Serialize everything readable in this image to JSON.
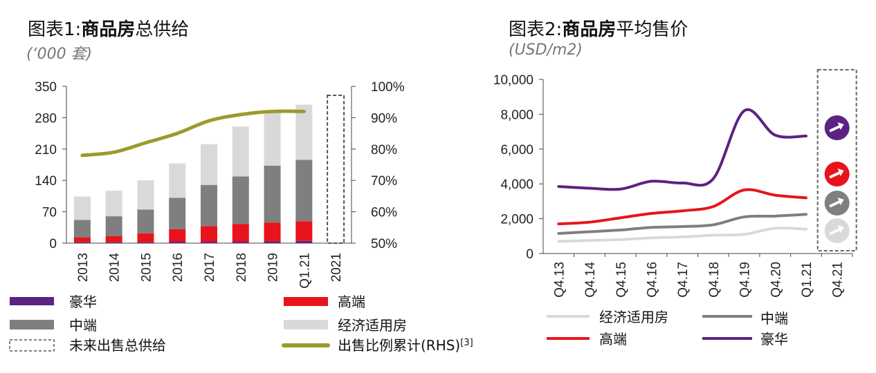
{
  "chart1": {
    "title_prefix": "图表1:",
    "title_bold": "商品房",
    "title_rest": "总供给",
    "unit": "(‘000 套)"
  },
  "chart2": {
    "title_prefix": "图表2:",
    "title_bold": "商品房",
    "title_rest": "平均售价",
    "unit": "(USD/m2)"
  },
  "colors": {
    "luxury": "#5b2281",
    "high": "#e8141b",
    "mid": "#7f7f7f",
    "affordable": "#d9d9d9",
    "ratio": "#9c9a2a"
  },
  "chart_data": [
    {
      "type": "bar",
      "stacked": true,
      "categories": [
        "2013",
        "2014",
        "2015",
        "2016",
        "2017",
        "2018",
        "2019",
        "Q1.21",
        "2021"
      ],
      "ylim": [
        0,
        350
      ],
      "yticks": [
        "0",
        "70",
        "140",
        "210",
        "280",
        "350"
      ],
      "y2lim": [
        50,
        100
      ],
      "y2ticks": [
        "50%",
        "60%",
        "70%",
        "80%",
        "90%",
        "100%"
      ],
      "series": [
        {
          "name": "豪华",
          "values": [
            2,
            2,
            2,
            3,
            3,
            3,
            4,
            5,
            null
          ]
        },
        {
          "name": "高端",
          "values": [
            11,
            14,
            20,
            28,
            35,
            40,
            42,
            44,
            null
          ]
        },
        {
          "name": "中端",
          "values": [
            39,
            44,
            53,
            70,
            92,
            106,
            127,
            137,
            null
          ]
        },
        {
          "name": "经济适用房",
          "values": [
            52,
            57,
            65,
            77,
            91,
            111,
            123,
            123,
            null
          ]
        },
        {
          "name": "出售比例累计(RHS)[3]",
          "axis": "right",
          "values": [
            78,
            79,
            82,
            85,
            89,
            91,
            92,
            92,
            null
          ]
        }
      ],
      "future_box": {
        "category": "2021",
        "value": 330
      },
      "legend": {
        "luxury": "豪华",
        "high": "高端",
        "mid": "中端",
        "affordable": "经济适用房",
        "future": "未来出售总供给",
        "ratio_prefix": "出售比例累计(RHS)",
        "ratio_sup": "[3]"
      },
      "legend_position": "bottom"
    },
    {
      "type": "line",
      "x": [
        "Q4.13",
        "Q4.14",
        "Q4.15",
        "Q4.16",
        "Q4.17",
        "Q4.18",
        "Q4.19",
        "Q4.20",
        "Q1.21",
        "Q4.21"
      ],
      "ylim": [
        0,
        10000
      ],
      "yticks": [
        "0",
        "2,000",
        "4,000",
        "6,000",
        "8,000",
        "10,000"
      ],
      "series": [
        {
          "name": "经济适用房",
          "values": [
            700,
            750,
            800,
            900,
            950,
            1050,
            1100,
            1450,
            1400,
            null
          ]
        },
        {
          "name": "中端",
          "values": [
            1150,
            1250,
            1350,
            1500,
            1550,
            1650,
            2100,
            2150,
            2250,
            null
          ]
        },
        {
          "name": "高端",
          "values": [
            1700,
            1800,
            2050,
            2300,
            2450,
            2700,
            3650,
            3350,
            3200,
            null
          ]
        },
        {
          "name": "豪华",
          "values": [
            3850,
            3750,
            3700,
            4150,
            4050,
            4300,
            8200,
            6800,
            6750,
            null
          ]
        }
      ],
      "forecast_arrows": [
        "up",
        "up",
        "up",
        "up"
      ],
      "legend": {
        "affordable": "经济适用房",
        "mid": "中端",
        "high": "高端",
        "luxury": "豪华"
      },
      "legend_position": "bottom"
    }
  ]
}
